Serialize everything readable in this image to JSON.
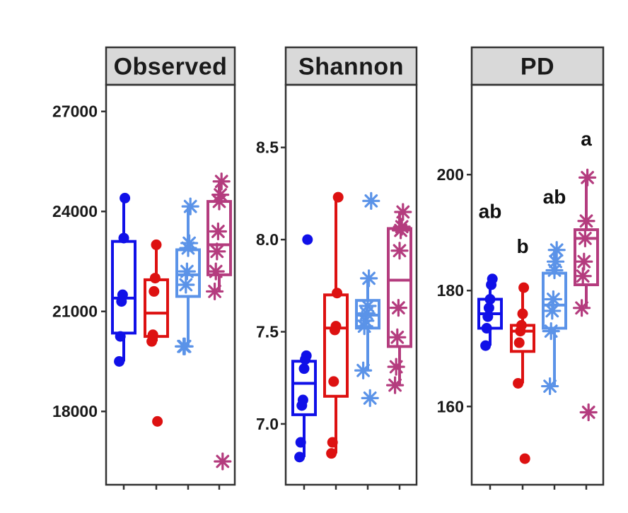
{
  "colors": {
    "group1": "#1010e8",
    "group2": "#dd1111",
    "group3": "#5b93e8",
    "group4": "#b43c7e",
    "strip_fill": "#d9d9d9",
    "frame": "#333333"
  },
  "chart_data": [
    {
      "type": "box",
      "title": "Observed",
      "ylim": [
        15800,
        27800
      ],
      "yticks": [
        18000,
        21000,
        24000,
        27000
      ],
      "ytick_labels": [
        "18000",
        "21000",
        "24000",
        "27000"
      ],
      "groups": [
        {
          "color_key": "group1",
          "marker": "dot",
          "q1": 20350,
          "median": 21400,
          "q3": 23100,
          "whisker_low": 19500,
          "whisker_high": 24400,
          "outliers": [],
          "points": [
            19500,
            20250,
            21300,
            21500,
            23200,
            24400
          ]
        },
        {
          "color_key": "group2",
          "marker": "dot",
          "q1": 20250,
          "median": 20950,
          "q3": 21950,
          "whisker_low": 20100,
          "whisker_high": 23000,
          "outliers": [
            17700
          ],
          "points": [
            20100,
            20300,
            21600,
            22000,
            23000,
            17700
          ]
        },
        {
          "color_key": "group3",
          "marker": "star",
          "q1": 21450,
          "median": 22100,
          "q3": 22850,
          "whisker_low": 19950,
          "whisker_high": 24150,
          "outliers": [],
          "points": [
            19950,
            19950,
            21800,
            22200,
            22900,
            23050,
            24150
          ]
        },
        {
          "color_key": "group4",
          "marker": "star",
          "q1": 22100,
          "median": 23000,
          "q3": 24300,
          "whisker_low": 21600,
          "whisker_high": 24900,
          "outliers": [
            16500
          ],
          "points": [
            21600,
            22200,
            22800,
            23400,
            24300,
            24500,
            24900,
            16500
          ]
        }
      ],
      "annotations": []
    },
    {
      "type": "box",
      "title": "Shannon",
      "ylim": [
        6.67,
        8.84
      ],
      "yticks": [
        7.0,
        7.5,
        8.0,
        8.5
      ],
      "ytick_labels": [
        "7.0",
        "7.5",
        "8.0",
        "8.5"
      ],
      "groups": [
        {
          "color_key": "group1",
          "marker": "dot",
          "q1": 7.05,
          "median": 7.22,
          "q3": 7.34,
          "whisker_low": 6.82,
          "whisker_high": 7.37,
          "outliers": [
            8.0
          ],
          "points": [
            6.82,
            6.9,
            7.1,
            7.13,
            7.3,
            7.35,
            7.37,
            8.0
          ]
        },
        {
          "color_key": "group2",
          "marker": "dot",
          "q1": 7.15,
          "median": 7.52,
          "q3": 7.7,
          "whisker_low": 6.84,
          "whisker_high": 8.23,
          "outliers": [],
          "points": [
            6.84,
            6.9,
            7.23,
            7.51,
            7.53,
            7.71,
            8.23
          ]
        },
        {
          "color_key": "group3",
          "marker": "star",
          "q1": 7.52,
          "median": 7.59,
          "q3": 7.67,
          "whisker_low": 7.29,
          "whisker_high": 7.79,
          "outliers": [
            7.14,
            8.21
          ],
          "points": [
            7.29,
            7.53,
            7.56,
            7.6,
            7.64,
            7.79,
            7.14,
            8.21
          ]
        },
        {
          "color_key": "group4",
          "marker": "star",
          "q1": 7.42,
          "median": 7.78,
          "q3": 8.06,
          "whisker_low": 7.21,
          "whisker_high": 8.15,
          "outliers": [],
          "points": [
            7.21,
            7.31,
            7.47,
            7.63,
            7.94,
            8.05,
            8.07,
            8.15
          ]
        }
      ],
      "annotations": []
    },
    {
      "type": "box",
      "title": "PD",
      "ylim": [
        146.5,
        215.5
      ],
      "yticks": [
        160,
        180,
        200
      ],
      "ytick_labels": [
        "160",
        "180",
        "200"
      ],
      "groups": [
        {
          "color_key": "group1",
          "marker": "dot",
          "q1": 173.5,
          "median": 176.0,
          "q3": 178.5,
          "whisker_low": 170.5,
          "whisker_high": 182.0,
          "outliers": [],
          "points": [
            170.5,
            173.5,
            175.5,
            177.0,
            178.5,
            181.0,
            182.0
          ]
        },
        {
          "color_key": "group2",
          "marker": "dot",
          "q1": 169.5,
          "median": 173.0,
          "q3": 174.0,
          "whisker_low": 164.0,
          "whisker_high": 180.5,
          "outliers": [
            151.0
          ],
          "points": [
            164.0,
            171.0,
            173.0,
            174.0,
            176.0,
            180.5,
            151.0
          ]
        },
        {
          "color_key": "group3",
          "marker": "star",
          "q1": 173.5,
          "median": 177.5,
          "q3": 183.0,
          "whisker_low": 163.5,
          "whisker_high": 187.0,
          "outliers": [],
          "points": [
            163.5,
            173.0,
            176.5,
            178.5,
            183.5,
            185.0,
            187.0
          ]
        },
        {
          "color_key": "group4",
          "marker": "star",
          "q1": 181.0,
          "median": 189.0,
          "q3": 190.5,
          "whisker_low": 177.0,
          "whisker_high": 199.5,
          "outliers": [
            159.0
          ],
          "points": [
            177.0,
            182.5,
            185.0,
            189.0,
            192.0,
            199.5,
            159.0
          ]
        }
      ],
      "annotations": [
        {
          "group_index": 0,
          "label": "ab",
          "y": 192.5
        },
        {
          "group_index": 1,
          "label": "b",
          "y": 186.5
        },
        {
          "group_index": 2,
          "label": "ab",
          "y": 195.0
        },
        {
          "group_index": 3,
          "label": "a",
          "y": 205.0
        }
      ]
    }
  ]
}
